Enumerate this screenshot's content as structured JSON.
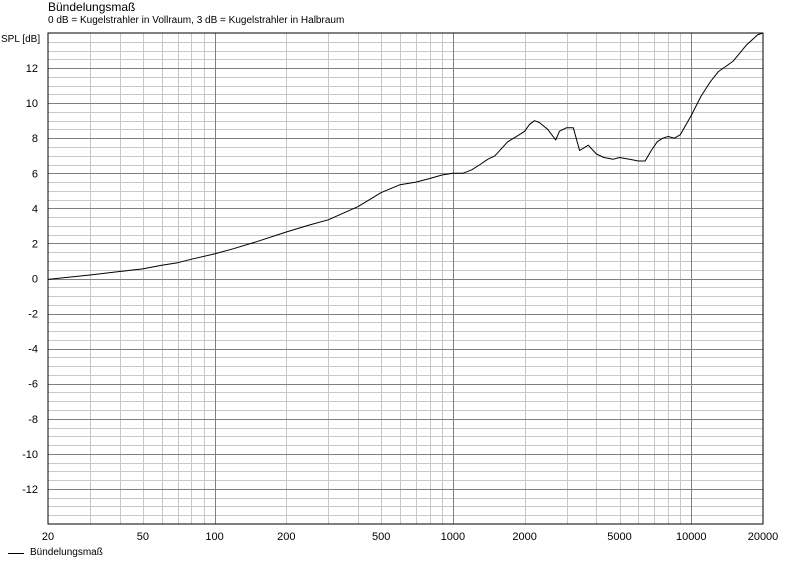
{
  "chart_data": {
    "type": "line",
    "title": "Bündelungsmaß",
    "subtitle": "0 dB = Kugelstrahler in Vollraum, 3 dB = Kugelstrahler in Halbraum",
    "ylabel": "SPL [dB]",
    "xlabel": "",
    "x_scale": "log",
    "xlim": [
      20,
      20000
    ],
    "ylim": [
      -14,
      14
    ],
    "x_ticks": [
      20,
      50,
      100,
      200,
      500,
      1000,
      2000,
      5000,
      10000,
      20000
    ],
    "x_tick_labels": [
      "20",
      "50",
      "100",
      "200",
      "500",
      "1000",
      "2000",
      "5000",
      "10000",
      "20000"
    ],
    "y_ticks": [
      -12,
      -10,
      -8,
      -6,
      -4,
      -2,
      0,
      2,
      4,
      6,
      8,
      10,
      12
    ],
    "y_tick_labels": [
      "-12",
      "-10",
      "-8",
      "-6",
      "-4",
      "-2",
      "0",
      "2",
      "4",
      "6",
      "8",
      "10",
      "12"
    ],
    "grid": true,
    "legend_position": "bottom-left",
    "series": [
      {
        "name": "Bündelungsmaß",
        "color": "#000000",
        "x": [
          20,
          30,
          40,
          50,
          60,
          70,
          80,
          100,
          120,
          150,
          200,
          250,
          300,
          400,
          500,
          600,
          700,
          800,
          900,
          1000,
          1100,
          1200,
          1300,
          1400,
          1500,
          1700,
          1900,
          2000,
          2100,
          2200,
          2300,
          2500,
          2700,
          2800,
          3000,
          3200,
          3400,
          3700,
          4000,
          4300,
          4700,
          5000,
          5500,
          6000,
          6400,
          6800,
          7200,
          7600,
          8000,
          8500,
          9000,
          10000,
          11000,
          12000,
          13000,
          15000,
          17000,
          19000,
          20000
        ],
        "y": [
          -0.05,
          0.2,
          0.4,
          0.55,
          0.75,
          0.9,
          1.1,
          1.4,
          1.7,
          2.1,
          2.65,
          3.05,
          3.35,
          4.1,
          4.9,
          5.35,
          5.5,
          5.7,
          5.9,
          6.0,
          6.0,
          6.2,
          6.5,
          6.8,
          7.0,
          7.8,
          8.2,
          8.4,
          8.8,
          9.0,
          8.9,
          8.5,
          7.9,
          8.4,
          8.6,
          8.6,
          7.3,
          7.6,
          7.1,
          6.9,
          6.8,
          6.9,
          6.8,
          6.7,
          6.7,
          7.3,
          7.8,
          8.0,
          8.1,
          8.0,
          8.2,
          9.3,
          10.4,
          11.2,
          11.8,
          12.4,
          13.3,
          13.9,
          14.0
        ]
      }
    ]
  }
}
